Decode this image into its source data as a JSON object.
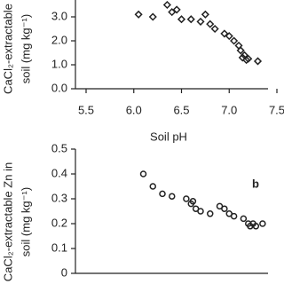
{
  "chart_data": [
    {
      "type": "scatter",
      "ylabel": [
        "CaCl₂-extractable",
        "soil (mg kg⁻¹)"
      ],
      "xlabel": "Soil pH",
      "marker": "diamond",
      "color": "#222222",
      "x": [
        6.05,
        6.2,
        6.35,
        6.4,
        6.45,
        6.5,
        6.6,
        6.7,
        6.75,
        6.8,
        6.85,
        6.95,
        7.0,
        7.05,
        7.1,
        7.12,
        7.14,
        7.16,
        7.18,
        7.2,
        7.3
      ],
      "values": [
        3.1,
        3.0,
        3.5,
        3.2,
        3.3,
        2.9,
        2.9,
        2.8,
        3.1,
        2.7,
        2.5,
        2.3,
        2.2,
        2.0,
        1.8,
        1.6,
        1.3,
        1.4,
        1.2,
        1.25,
        1.15
      ],
      "xlim": [
        5.5,
        7.5
      ],
      "xticks": [
        5.5,
        {
          "value": 6,
          "label": "6.0"
        },
        6.5,
        {
          "value": 7,
          "label": "7.0"
        },
        7.5
      ],
      "ylim": [
        0,
        4
      ],
      "yticks": [
        {
          "value": 0,
          "label": "0.0"
        },
        {
          "value": 1,
          "label": "1.0"
        },
        {
          "value": 2,
          "label": "2.0"
        },
        {
          "value": 3,
          "label": "3.0"
        }
      ]
    },
    {
      "type": "scatter",
      "ylabel": [
        "CaCl₂-extractable Zn in",
        "soil (mg kg⁻¹)"
      ],
      "annotation": "b",
      "marker": "circle",
      "color": "#222222",
      "x": [
        6.1,
        6.2,
        6.3,
        6.4,
        6.55,
        6.6,
        6.62,
        6.65,
        6.7,
        6.8,
        6.9,
        6.95,
        7.0,
        7.05,
        7.15,
        7.2,
        7.22,
        7.25,
        7.28,
        7.35
      ],
      "values": [
        0.4,
        0.35,
        0.32,
        0.31,
        0.3,
        0.28,
        0.29,
        0.26,
        0.25,
        0.24,
        0.27,
        0.26,
        0.24,
        0.23,
        0.22,
        0.2,
        0.19,
        0.2,
        0.19,
        0.2
      ],
      "xlim": [
        5.5,
        7.5
      ],
      "ylim": [
        0,
        0.5
      ],
      "yticks": [
        0,
        0.1,
        0.2,
        0.3,
        0.4,
        0.5
      ]
    }
  ]
}
